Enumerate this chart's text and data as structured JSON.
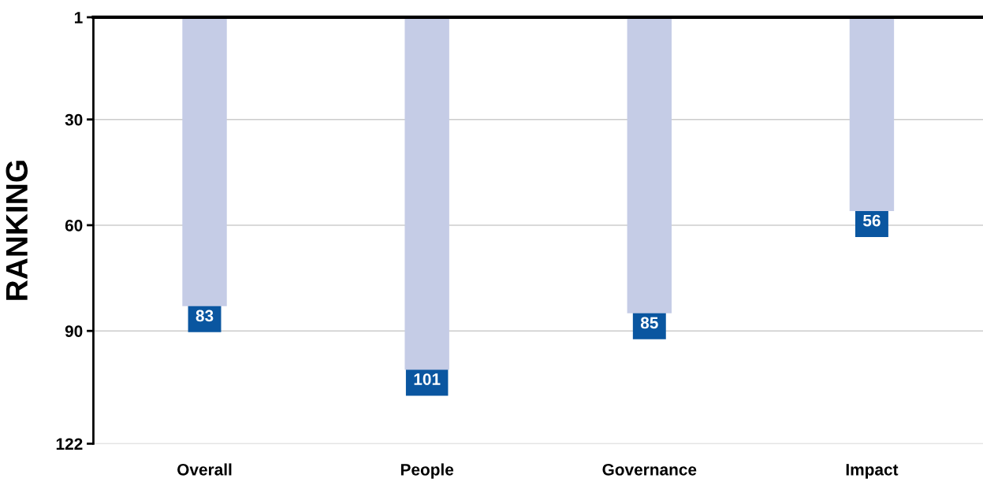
{
  "chart_data": {
    "type": "bar",
    "ylabel": "RANKING",
    "categories": [
      "Overall",
      "People",
      "Governance",
      "Impact"
    ],
    "values": [
      83,
      101,
      85,
      56
    ],
    "color": "#c5cce6",
    "data_labels": true,
    "ylim": [
      122,
      1
    ],
    "yticks": [
      1,
      30,
      60,
      90,
      122
    ],
    "grid": "y"
  }
}
